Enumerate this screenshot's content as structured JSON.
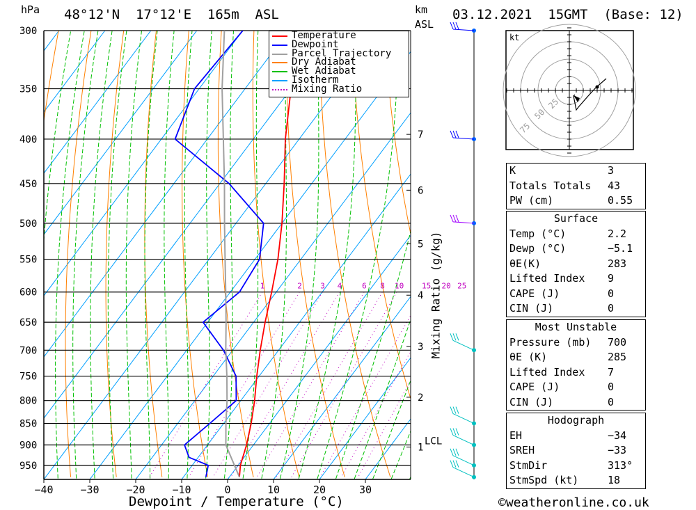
{
  "header": {
    "location": "48°12'N  17°12'E  165m  ASL",
    "datetime": "03.12.2021  15GMT  (Base: 12)",
    "pressure_unit": "hPa",
    "height_unit_line1": "km",
    "height_unit_line2": "ASL"
  },
  "footer": {
    "credit": "©weatheronline.co.uk"
  },
  "legend": {
    "items": [
      {
        "label": "Temperature",
        "color": "#ff0000",
        "style": "solid"
      },
      {
        "label": "Dewpoint",
        "color": "#0000ff",
        "style": "solid"
      },
      {
        "label": "Parcel Trajectory",
        "color": "#a0a0a0",
        "style": "solid"
      },
      {
        "label": "Dry Adiabat",
        "color": "#ff8000",
        "style": "solid"
      },
      {
        "label": "Wet Adiabat",
        "color": "#00c000",
        "style": "solid"
      },
      {
        "label": "Isotherm",
        "color": "#00a0ff",
        "style": "solid"
      },
      {
        "label": "Mixing Ratio",
        "color": "#c000c0",
        "style": "dotted"
      }
    ]
  },
  "hodograph": {
    "unit_label": "kt",
    "ring_labels": [
      "25",
      "50",
      "75"
    ]
  },
  "indices": {
    "top": [
      {
        "label": "K",
        "value": "3"
      },
      {
        "label": "Totals Totals",
        "value": "43"
      },
      {
        "label": "PW (cm)",
        "value": "0.55"
      }
    ],
    "surface": {
      "title": "Surface",
      "rows": [
        {
          "label": "Temp (°C)",
          "value": "2.2"
        },
        {
          "label": "Dewp (°C)",
          "value": "−5.1"
        },
        {
          "label": "θE(K)",
          "value": "283"
        },
        {
          "label": "Lifted Index",
          "value": "9"
        },
        {
          "label": "CAPE (J)",
          "value": "0"
        },
        {
          "label": "CIN (J)",
          "value": "0"
        }
      ]
    },
    "most_unstable": {
      "title": "Most Unstable",
      "rows": [
        {
          "label": "Pressure (mb)",
          "value": "700"
        },
        {
          "label": "θE (K)",
          "value": "285"
        },
        {
          "label": "Lifted Index",
          "value": "7"
        },
        {
          "label": "CAPE (J)",
          "value": "0"
        },
        {
          "label": "CIN (J)",
          "value": "0"
        }
      ]
    },
    "hodograph": {
      "title": "Hodograph",
      "rows": [
        {
          "label": "EH",
          "value": "−34"
        },
        {
          "label": "SREH",
          "value": "−33"
        },
        {
          "label": "StmDir",
          "value": "313°"
        },
        {
          "label": "StmSpd (kt)",
          "value": "18"
        }
      ]
    }
  },
  "chart_data": {
    "type": "line",
    "title": "",
    "xlabel": "Dewpoint / Temperature (°C)",
    "ylabel": "hPa",
    "right_label": "Mixing Ratio (g/kg)",
    "pressure_levels": [
      300,
      350,
      400,
      450,
      500,
      550,
      600,
      650,
      700,
      750,
      800,
      850,
      900,
      950
    ],
    "x_ticks": [
      -40,
      -30,
      -20,
      -10,
      0,
      10,
      20,
      30
    ],
    "height_ticks": [
      {
        "km": "1",
        "p": 905
      },
      {
        "km": "2",
        "p": 793
      },
      {
        "km": "3",
        "p": 693
      },
      {
        "km": "4",
        "p": 605
      },
      {
        "km": "5",
        "p": 528
      },
      {
        "km": "6",
        "p": 458
      },
      {
        "km": "7",
        "p": 395
      }
    ],
    "lcl_label": "LCL",
    "lcl_pressure": 900,
    "mixing_ratio_labels": [
      "1",
      "2",
      "3",
      "4",
      "6",
      "8",
      "10",
      "15",
      "20",
      "25"
    ],
    "mixing_ratio_values": [
      1,
      2,
      3,
      4,
      6,
      8,
      10,
      15,
      20,
      25
    ],
    "series": [
      {
        "name": "Temperature",
        "color": "#ff0000",
        "points": [
          [
            980,
            2.2
          ],
          [
            950,
            0.5
          ],
          [
            900,
            -1.5
          ],
          [
            850,
            -4
          ],
          [
            800,
            -7
          ],
          [
            750,
            -10.5
          ],
          [
            700,
            -14
          ],
          [
            650,
            -17.5
          ],
          [
            600,
            -21
          ],
          [
            550,
            -25
          ],
          [
            500,
            -30
          ],
          [
            450,
            -36
          ],
          [
            400,
            -43
          ],
          [
            350,
            -50
          ],
          [
            300,
            -56
          ]
        ]
      },
      {
        "name": "Dewpoint",
        "color": "#0000ff",
        "points": [
          [
            980,
            -5.1
          ],
          [
            950,
            -6.5
          ],
          [
            930,
            -12
          ],
          [
            900,
            -15
          ],
          [
            850,
            -13
          ],
          [
            800,
            -11
          ],
          [
            750,
            -15
          ],
          [
            700,
            -22
          ],
          [
            650,
            -31
          ],
          [
            600,
            -28
          ],
          [
            550,
            -29
          ],
          [
            500,
            -34
          ],
          [
            450,
            -48
          ],
          [
            400,
            -67
          ],
          [
            350,
            -71
          ],
          [
            300,
            -70
          ]
        ]
      },
      {
        "name": "Parcel Trajectory",
        "color": "#a0a0a0",
        "points": [
          [
            980,
            2.2
          ],
          [
            900,
            -6
          ],
          [
            850,
            -9.5
          ],
          [
            800,
            -13
          ],
          [
            750,
            -17
          ],
          [
            700,
            -21.5
          ],
          [
            650,
            -26
          ],
          [
            600,
            -31
          ],
          [
            550,
            -36.5
          ],
          [
            500,
            -42.5
          ],
          [
            450,
            -49
          ],
          [
            400,
            -56.5
          ],
          [
            350,
            -65
          ],
          [
            300,
            -74
          ]
        ]
      }
    ],
    "wind_levels": [
      300,
      400,
      500,
      700,
      850,
      900,
      950,
      980
    ]
  }
}
